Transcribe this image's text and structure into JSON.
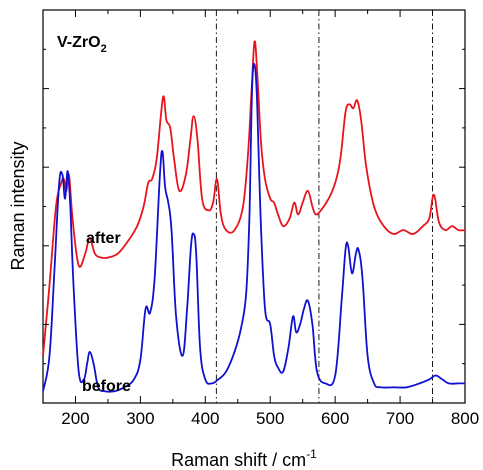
{
  "chart_data": {
    "type": "line",
    "title": "",
    "xlabel": "Raman shift / cm",
    "xlabel_superscript": "-1",
    "ylabel": "Raman intensity",
    "xlim": [
      150,
      800
    ],
    "ylim": [
      0,
      100
    ],
    "x_ticks": [
      200,
      300,
      400,
      500,
      600,
      700,
      800
    ],
    "y_tick_labels_shown": false,
    "grid": false,
    "legend": "none",
    "sample_label": {
      "main": "V-ZrO",
      "subscript": "2"
    },
    "reference_lines_x": [
      417,
      575,
      750
    ],
    "series": [
      {
        "label": "after",
        "color": "#e8141c",
        "x": [
          150,
          160,
          170,
          178,
          182,
          186,
          190,
          196,
          205,
          215,
          222,
          230,
          240,
          250,
          265,
          280,
          295,
          305,
          312,
          318,
          325,
          332,
          336,
          340,
          346,
          352,
          360,
          370,
          377,
          382,
          388,
          395,
          405,
          412,
          418,
          424,
          432,
          445,
          458,
          466,
          472,
          476,
          480,
          486,
          492,
          500,
          506,
          512,
          520,
          530,
          537,
          543,
          550,
          558,
          565,
          570,
          578,
          590,
          600,
          608,
          616,
          622,
          628,
          634,
          640,
          648,
          660,
          675,
          690,
          705,
          720,
          735,
          745,
          752,
          760,
          770,
          780,
          790,
          800
        ],
        "y": [
          12,
          30,
          50,
          56,
          57,
          54,
          58,
          46,
          35,
          38,
          42,
          38,
          37,
          37,
          38,
          41,
          45,
          50,
          56,
          57,
          62,
          74,
          78,
          72,
          70,
          62,
          54,
          58,
          67,
          73,
          67,
          52,
          49,
          51,
          57,
          48,
          44,
          44,
          50,
          64,
          82,
          92,
          84,
          66,
          57,
          52,
          51,
          48,
          45,
          47,
          51,
          48,
          51,
          54,
          50,
          48,
          49,
          52,
          56,
          62,
          74,
          76,
          75,
          77,
          72,
          60,
          50,
          45,
          43,
          44,
          43,
          45,
          47,
          53,
          46,
          44,
          45,
          44,
          44
        ]
      },
      {
        "label": "before",
        "color": "#1010d0",
        "x": [
          150,
          160,
          168,
          175,
          180,
          184,
          188,
          192,
          197,
          205,
          213,
          218,
          222,
          228,
          235,
          245,
          260,
          275,
          290,
          300,
          308,
          315,
          322,
          330,
          334,
          338,
          343,
          348,
          355,
          365,
          372,
          378,
          382,
          386,
          392,
          400,
          410,
          420,
          432,
          445,
          455,
          463,
          468,
          472,
          476,
          480,
          485,
          492,
          500,
          506,
          512,
          520,
          528,
          535,
          540,
          546,
          552,
          558,
          565,
          572,
          585,
          600,
          610,
          616,
          620,
          626,
          632,
          636,
          642,
          650,
          660,
          670,
          690,
          710,
          730,
          745,
          755,
          765,
          775,
          790,
          800
        ],
        "y": [
          3,
          12,
          35,
          56,
          58,
          52,
          59,
          50,
          30,
          8,
          6,
          10,
          13,
          10,
          4,
          3,
          3,
          4,
          6,
          11,
          24,
          23,
          32,
          58,
          64,
          55,
          51,
          44,
          22,
          12,
          24,
          40,
          43,
          38,
          14,
          6,
          5,
          6,
          8,
          13,
          19,
          28,
          48,
          80,
          86,
          76,
          48,
          24,
          20,
          12,
          9,
          8,
          14,
          22,
          18,
          20,
          24,
          26,
          20,
          8,
          5,
          7,
          26,
          39,
          40,
          33,
          38,
          39,
          32,
          12,
          5,
          4,
          4,
          4,
          5,
          6,
          7,
          6,
          5,
          5,
          5
        ]
      }
    ]
  }
}
